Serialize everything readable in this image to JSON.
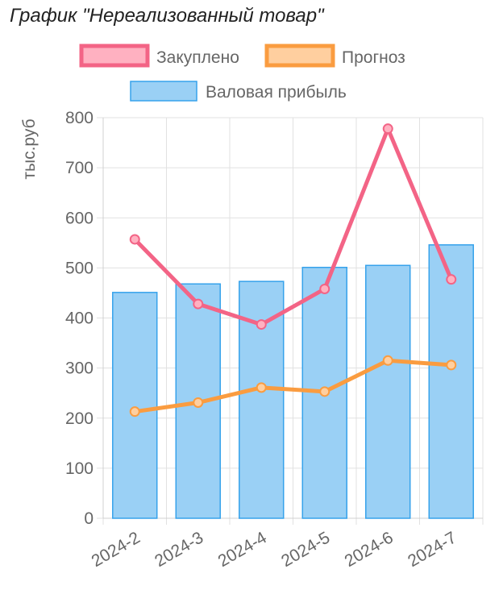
{
  "chart_data": {
    "type": "bar",
    "title": "График \"Нереализованный товар\"",
    "xlabel": "",
    "ylabel": "тыс.руб",
    "categories": [
      "2024-2",
      "2024-3",
      "2024-4",
      "2024-5",
      "2024-6",
      "2024-7"
    ],
    "ylim": [
      0,
      800
    ],
    "yticks": [
      0,
      100,
      200,
      300,
      400,
      500,
      600,
      700,
      800
    ],
    "grid": true,
    "legend_position": "top",
    "series": [
      {
        "name": "Закуплено",
        "type": "line",
        "color": "#f36486",
        "fill": "#ffb1c1",
        "values": [
          557,
          428,
          387,
          458,
          778,
          477
        ]
      },
      {
        "name": "Прогноз",
        "type": "line",
        "color": "#fa9c40",
        "fill": "#ffcf9f",
        "values": [
          213,
          231,
          261,
          253,
          315,
          306
        ]
      },
      {
        "name": "Валовая прибыль",
        "type": "bar",
        "color": "#36a2eb",
        "fill": "#9ad0f5",
        "values": [
          451,
          468,
          473,
          501,
          505,
          546
        ]
      }
    ]
  }
}
